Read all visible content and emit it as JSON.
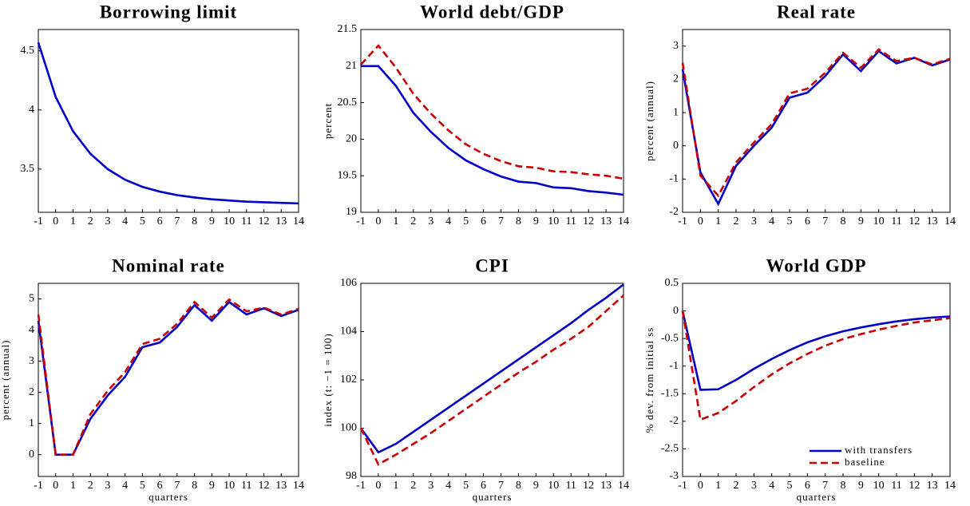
{
  "chart_data": [
    {
      "type": "line",
      "title": "Borrowing limit",
      "x": [
        -1,
        0,
        1,
        2,
        3,
        4,
        5,
        6,
        7,
        8,
        9,
        10,
        11,
        12,
        13,
        14
      ],
      "xlim": [
        -1,
        14
      ],
      "xticks": [
        -1,
        0,
        1,
        2,
        3,
        4,
        5,
        6,
        7,
        8,
        9,
        10,
        11,
        12,
        13,
        14
      ],
      "ylim": [
        3.135,
        4.68
      ],
      "yticks": [
        3.5,
        4,
        4.5
      ],
      "series": [
        {
          "color": "#0000c8",
          "dashed": false,
          "values": [
            4.57,
            4.11,
            3.82,
            3.63,
            3.5,
            3.41,
            3.35,
            3.31,
            3.28,
            3.26,
            3.245,
            3.235,
            3.225,
            3.22,
            3.215,
            3.21
          ]
        }
      ]
    },
    {
      "type": "line",
      "title": "World debt/GDP",
      "ylabel": "percent",
      "x": [
        -1,
        0,
        1,
        2,
        3,
        4,
        5,
        6,
        7,
        8,
        9,
        10,
        11,
        12,
        13,
        14
      ],
      "xlim": [
        -1,
        14
      ],
      "xticks": [
        -1,
        0,
        1,
        2,
        3,
        4,
        5,
        6,
        7,
        8,
        9,
        10,
        11,
        12,
        13,
        14
      ],
      "ylim": [
        19,
        21.5
      ],
      "yticks": [
        19,
        19.5,
        20,
        20.5,
        21,
        21.5
      ],
      "series": [
        {
          "color": "#0000c8",
          "dashed": false,
          "values": [
            21,
            21,
            20.73,
            20.36,
            20.1,
            19.88,
            19.71,
            19.59,
            19.49,
            19.42,
            19.4,
            19.34,
            19.33,
            19.29,
            19.27,
            19.24
          ]
        },
        {
          "color": "#c80000",
          "dashed": true,
          "values": [
            21.02,
            21.28,
            20.98,
            20.62,
            20.35,
            20.12,
            19.93,
            19.8,
            19.7,
            19.63,
            19.61,
            19.56,
            19.55,
            19.52,
            19.5,
            19.46
          ]
        }
      ]
    },
    {
      "type": "line",
      "title": "Real rate",
      "ylabel": "percent (annual)",
      "x": [
        -1,
        0,
        1,
        2,
        3,
        4,
        5,
        6,
        7,
        8,
        9,
        10,
        11,
        12,
        13,
        14
      ],
      "xlim": [
        -1,
        14
      ],
      "xticks": [
        -1,
        0,
        1,
        2,
        3,
        4,
        5,
        6,
        7,
        8,
        9,
        10,
        11,
        12,
        13,
        14
      ],
      "ylim": [
        -2,
        3.5
      ],
      "yticks": [
        -2,
        -1,
        0,
        1,
        2,
        3
      ],
      "series": [
        {
          "color": "#0000c8",
          "dashed": false,
          "values": [
            2.3,
            -0.8,
            -1.75,
            -0.6,
            0,
            0.55,
            1.45,
            1.6,
            2.1,
            2.75,
            2.25,
            2.85,
            2.48,
            2.65,
            2.42,
            2.6
          ]
        },
        {
          "color": "#c80000",
          "dashed": true,
          "values": [
            2.5,
            -0.9,
            -1.5,
            -0.5,
            0.1,
            0.65,
            1.58,
            1.72,
            2.2,
            2.8,
            2.35,
            2.9,
            2.55,
            2.65,
            2.45,
            2.62
          ]
        }
      ]
    },
    {
      "type": "line",
      "title": "Nominal rate",
      "ylabel": "percent (annual)",
      "xlabel": "quarters",
      "x": [
        -1,
        0,
        1,
        2,
        3,
        4,
        5,
        6,
        7,
        8,
        9,
        10,
        11,
        12,
        13,
        14
      ],
      "xlim": [
        -1,
        14
      ],
      "xticks": [
        -1,
        0,
        1,
        2,
        3,
        4,
        5,
        6,
        7,
        8,
        9,
        10,
        11,
        12,
        13,
        14
      ],
      "ylim": [
        -0.7,
        5.5
      ],
      "yticks": [
        0,
        1,
        2,
        3,
        4,
        5
      ],
      "series": [
        {
          "color": "#0000c8",
          "dashed": false,
          "values": [
            4.3,
            0,
            0,
            1.15,
            1.9,
            2.5,
            3.45,
            3.6,
            4.1,
            4.8,
            4.3,
            4.9,
            4.5,
            4.7,
            4.45,
            4.65
          ]
        },
        {
          "color": "#c80000",
          "dashed": true,
          "values": [
            4.5,
            0,
            0,
            1.3,
            2.05,
            2.65,
            3.55,
            3.72,
            4.2,
            4.9,
            4.4,
            4.98,
            4.6,
            4.72,
            4.5,
            4.68
          ]
        }
      ]
    },
    {
      "type": "line",
      "title": "CPI",
      "ylabel": "index (t: −1 = 100)",
      "xlabel": "quarters",
      "x": [
        -1,
        0,
        1,
        2,
        3,
        4,
        5,
        6,
        7,
        8,
        9,
        10,
        11,
        12,
        13,
        14
      ],
      "xlim": [
        -1,
        14
      ],
      "xticks": [
        -1,
        0,
        1,
        2,
        3,
        4,
        5,
        6,
        7,
        8,
        9,
        10,
        11,
        12,
        13,
        14
      ],
      "ylim": [
        98,
        106
      ],
      "yticks": [
        98,
        100,
        102,
        104,
        106
      ],
      "series": [
        {
          "color": "#0000c8",
          "dashed": false,
          "values": [
            100,
            99,
            99.35,
            99.85,
            100.35,
            100.85,
            101.35,
            101.85,
            102.35,
            102.85,
            103.35,
            103.85,
            104.35,
            104.9,
            105.4,
            105.95
          ]
        },
        {
          "color": "#c80000",
          "dashed": true,
          "values": [
            100,
            98.5,
            98.9,
            99.35,
            99.8,
            100.3,
            100.8,
            101.3,
            101.8,
            102.3,
            102.75,
            103.25,
            103.7,
            104.2,
            104.85,
            105.5
          ]
        }
      ]
    },
    {
      "type": "line",
      "title": "World GDP",
      "ylabel": "% dev. from initial ss",
      "xlabel": "quarters",
      "x": [
        -1,
        0,
        1,
        2,
        3,
        4,
        5,
        6,
        7,
        8,
        9,
        10,
        11,
        12,
        13,
        14
      ],
      "xlim": [
        -1,
        14
      ],
      "xticks": [
        -1,
        0,
        1,
        2,
        3,
        4,
        5,
        6,
        7,
        8,
        9,
        10,
        11,
        12,
        13,
        14
      ],
      "ylim": [
        -3,
        0.5
      ],
      "yticks": [
        -3,
        -2.5,
        -2,
        -1.5,
        -1,
        -0.5,
        0,
        0.5
      ],
      "legend": "lower right",
      "series": [
        {
          "name": "with transfers",
          "color": "#0000c8",
          "dashed": false,
          "values": [
            0,
            -1.43,
            -1.42,
            -1.25,
            -1.05,
            -0.87,
            -0.71,
            -0.57,
            -0.46,
            -0.37,
            -0.3,
            -0.24,
            -0.19,
            -0.15,
            -0.12,
            -0.1
          ]
        },
        {
          "name": "baseline",
          "color": "#c80000",
          "dashed": true,
          "values": [
            0,
            -1.97,
            -1.85,
            -1.63,
            -1.38,
            -1.15,
            -0.95,
            -0.78,
            -0.63,
            -0.51,
            -0.42,
            -0.34,
            -0.27,
            -0.21,
            -0.17,
            -0.13
          ]
        }
      ]
    }
  ]
}
